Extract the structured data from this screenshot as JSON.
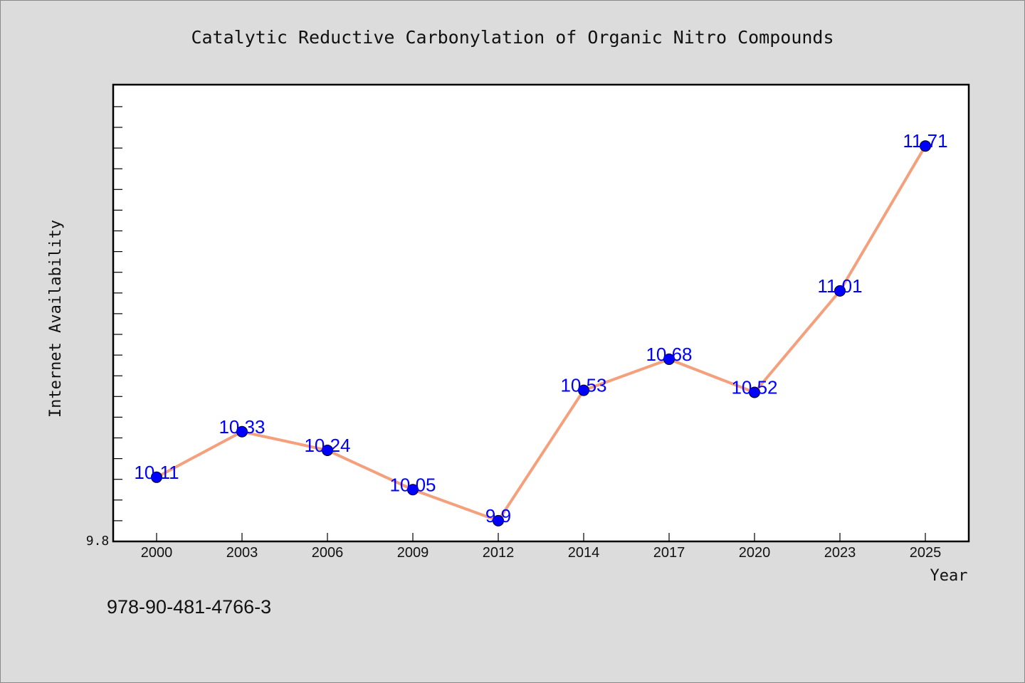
{
  "chart_data": {
    "type": "line",
    "title": "Catalytic Reductive Carbonylation of Organic Nitro Compounds",
    "xlabel": "Year",
    "ylabel": "Internet Availability",
    "categories": [
      "2000",
      "2003",
      "2006",
      "2009",
      "2012",
      "2014",
      "2017",
      "2020",
      "2023",
      "2025"
    ],
    "values": [
      10.11,
      10.33,
      10.24,
      10.05,
      9.9,
      10.53,
      10.68,
      10.52,
      11.01,
      11.71
    ],
    "data_labels": [
      "10.11",
      "10.33",
      "10.24",
      "10.05",
      "9.9",
      "10.53",
      "10.68",
      "10.52",
      "11.01",
      "11.71"
    ],
    "ylim": [
      9.8,
      12.0
    ],
    "y_tick_labels": [
      "9.8"
    ],
    "grid": false,
    "legend": "none",
    "colors": {
      "line": "#f4a07c",
      "marker": "#0000ff",
      "data_label": "#0000ff",
      "plot_background": "#ffffff",
      "page_background": "#dcdcdc"
    }
  },
  "footer": {
    "isbn": "978-90-481-4766-3"
  }
}
